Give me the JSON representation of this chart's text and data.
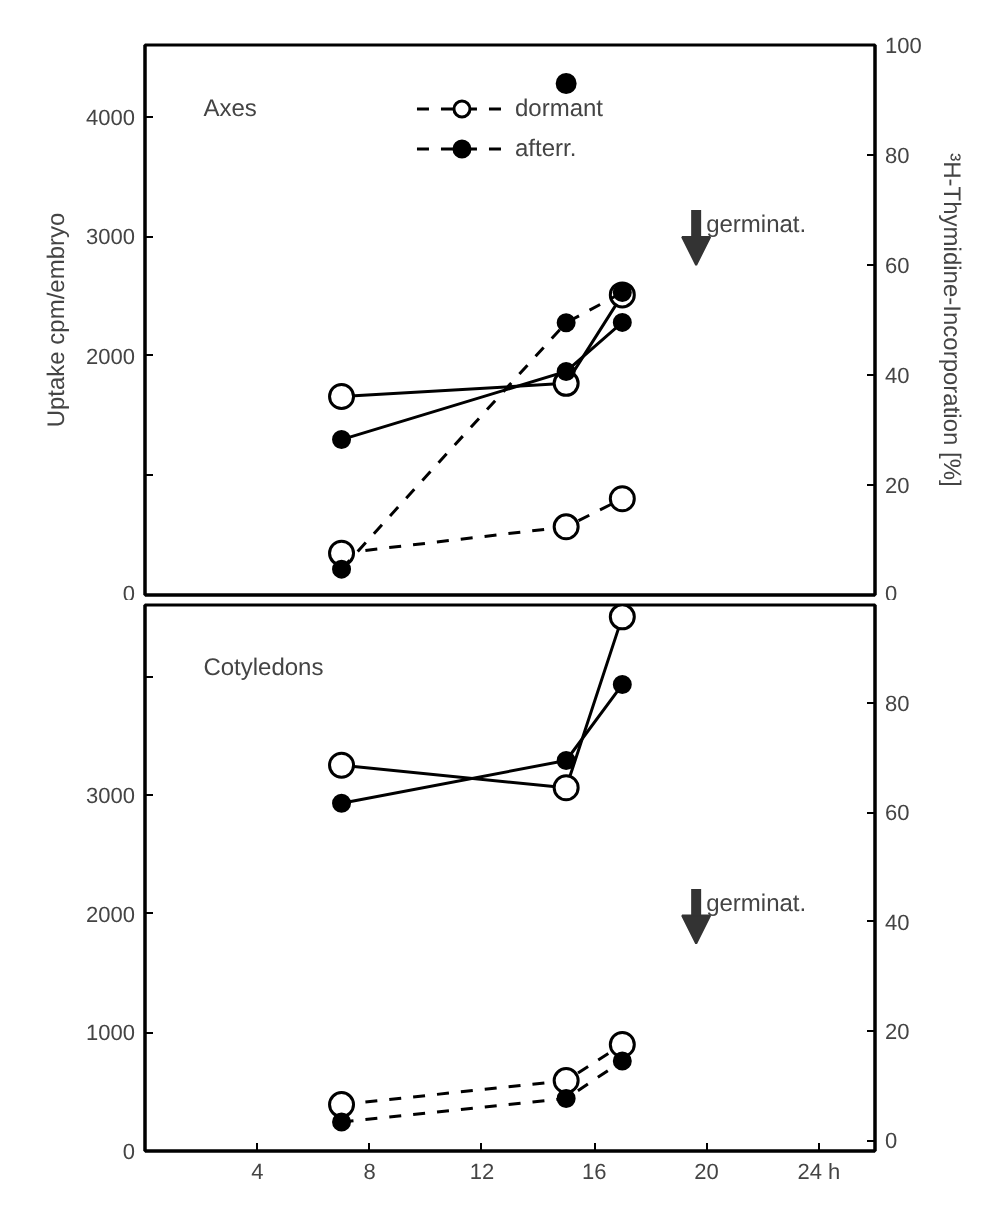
{
  "chart_data": [
    {
      "type": "line",
      "ylabel": "Uptake cpm/embryo",
      "y2label": "³H-Thymidine-Incorporation [%]",
      "xlim": [
        0,
        26
      ],
      "ylim": [
        0,
        4600
      ],
      "y2lim": [
        0,
        100
      ],
      "yticks": [
        0,
        {
          "value": 1000,
          "label": null
        },
        2000,
        3000,
        4000
      ],
      "y2ticks": [
        0,
        20,
        40,
        60,
        80,
        100
      ],
      "tick_labels": "y",
      "grid": false,
      "legend": "top",
      "marker": "circle",
      "series": [
        {
          "color": "#000000",
          "marker": "circle_open",
          "line_style": "solid",
          "x": [
            7,
            15,
            17
          ],
          "values": [
            1660,
            1770,
            2510
          ]
        },
        {
          "color": "#000000",
          "line_style": "solid",
          "x": [
            7,
            15,
            17
          ],
          "values": [
            1300,
            1870,
            2280
          ]
        },
        {
          "name": "dormant",
          "color": "#000000",
          "marker": "circle_open",
          "line_style": "dashed",
          "axis": "y2",
          "x": [
            7,
            15,
            17
          ],
          "values": [
            7.6,
            12.4,
            17.5
          ]
        },
        {
          "name": "afterr.",
          "color": "#000000",
          "line_style": "dashed",
          "axis": "y2",
          "x": [
            7,
            15,
            17
          ],
          "values": [
            4.7,
            49.5,
            55
          ]
        },
        {
          "type": "scatter",
          "color": "#000000",
          "axis": "y2",
          "x": [
            15
          ],
          "values": [
            93
          ]
        }
      ],
      "annotations": [
        "Axes",
        "germinat."
      ]
    },
    {
      "type": "line",
      "xlim": [
        0,
        26
      ],
      "ylim": [
        0,
        4600
      ],
      "y2lim": [
        -2,
        98
      ],
      "xticks": [
        4,
        8,
        12,
        16,
        20,
        {
          "value": 24,
          "label": "24 h"
        }
      ],
      "yticks": [
        0,
        1000,
        2000,
        3000,
        {
          "value": 4000,
          "label": null
        }
      ],
      "y2ticks": [
        0,
        20,
        40,
        60,
        80
      ],
      "grid": false,
      "marker": "circle",
      "series": [
        {
          "color": "#000000",
          "marker": "circle_open",
          "line_style": "solid",
          "x": [
            7,
            15,
            17
          ],
          "values": [
            3250,
            3060,
            4500
          ]
        },
        {
          "color": "#000000",
          "line_style": "solid",
          "x": [
            7,
            15,
            17
          ],
          "values": [
            2930,
            3290,
            3930
          ]
        },
        {
          "color": "#000000",
          "marker": "circle_open",
          "line_style": "dashed",
          "axis": "y2",
          "x": [
            7,
            15,
            17
          ],
          "values": [
            6.5,
            10.9,
            17.5
          ]
        },
        {
          "color": "#000000",
          "line_style": "dashed",
          "axis": "y2",
          "x": [
            7,
            15,
            17
          ],
          "values": [
            3.3,
            7.6,
            14.5
          ]
        }
      ],
      "annotations": [
        "Cotyledons",
        "germinat."
      ]
    }
  ]
}
